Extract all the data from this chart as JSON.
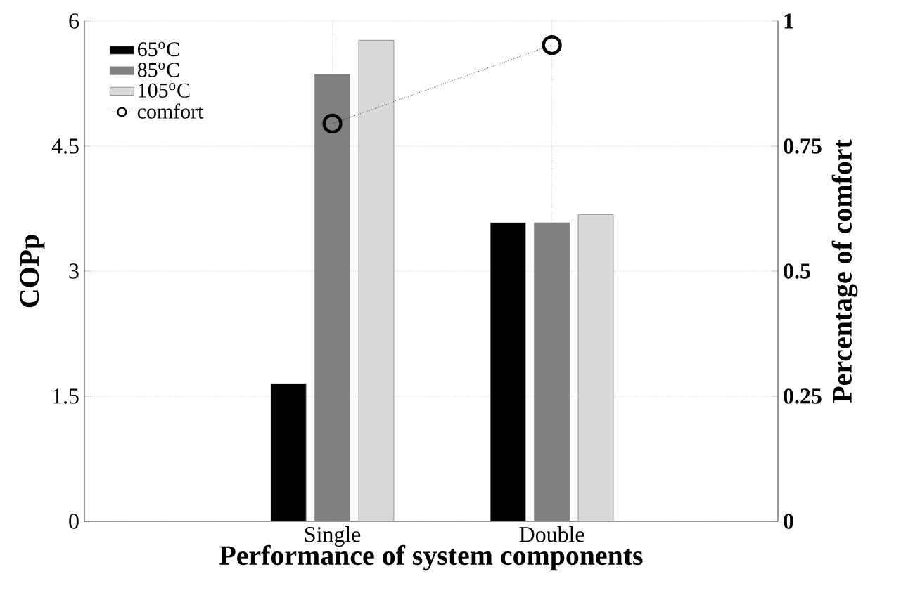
{
  "chart_data": {
    "type": "bar",
    "xlabel": "Performance of system components",
    "ylabel": "COPp",
    "y2label": "Percentage of comfort",
    "categories": [
      "Single",
      "Double"
    ],
    "series": [
      {
        "name": "65$^{o}$C",
        "color": "#000000",
        "values": [
          1.65,
          3.58
        ]
      },
      {
        "name": "85$^{o}$C",
        "color": "#808080",
        "values": [
          5.36,
          3.58
        ]
      },
      {
        "name": "105$^{o}$C",
        "color": "#d9d9d9",
        "values": [
          5.77,
          3.68
        ]
      },
      {
        "name": "comfort",
        "type": "line",
        "axis": "y2",
        "color": "#000000",
        "marker": "circle",
        "line_style": "dotted",
        "values": [
          0.795,
          0.952
        ]
      }
    ],
    "ylim": [
      0,
      6
    ],
    "yticks": [
      0,
      1.5,
      3,
      4.5,
      6
    ],
    "y2lim": [
      0,
      1
    ],
    "y2ticks": [
      0,
      0.25,
      0.5,
      0.75,
      1
    ],
    "grid": true,
    "legend": "top left"
  }
}
